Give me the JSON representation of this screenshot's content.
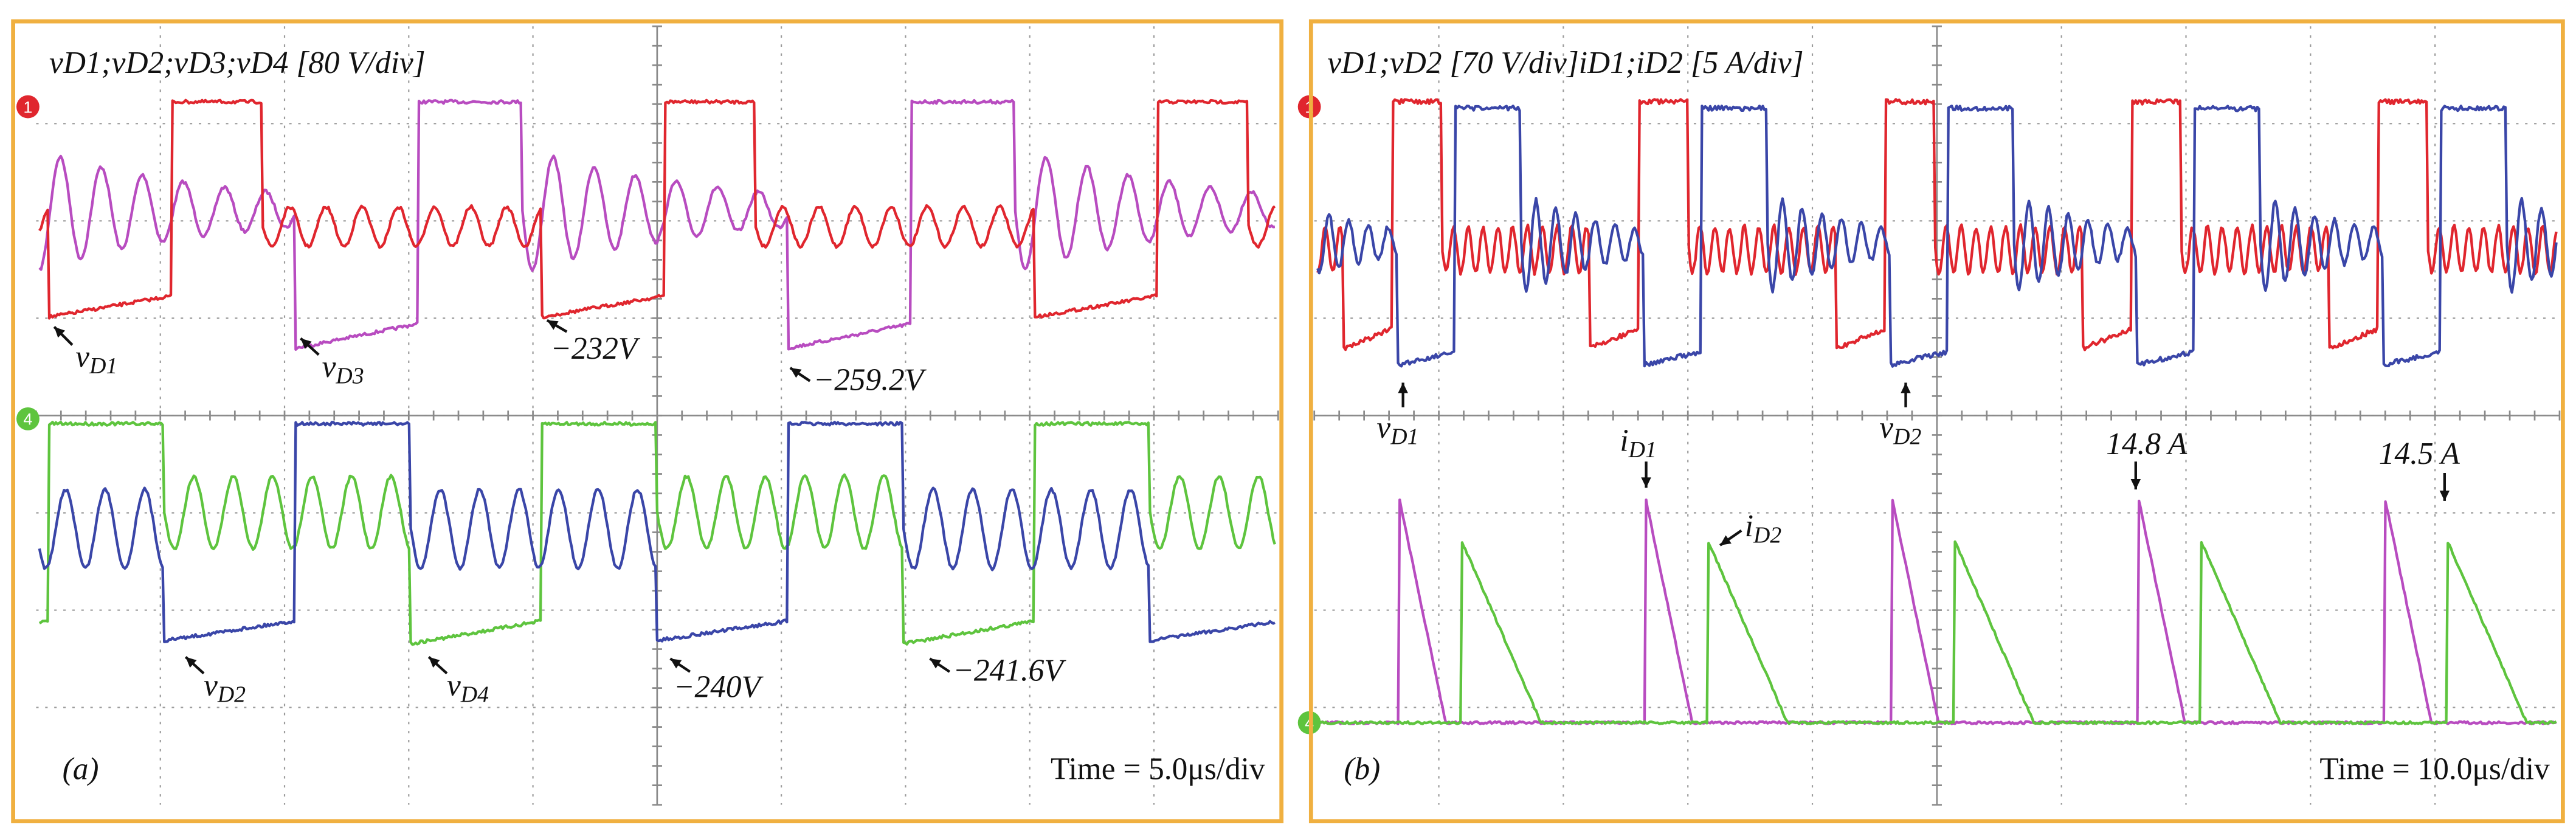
{
  "panel_a": {
    "title": "vD1;vD2;vD3;vD4 [80 V/div]",
    "label": "(a)",
    "time": "Time = 5.0μs/div",
    "markers": [
      "1",
      "4"
    ],
    "annotations": [
      {
        "base": "v",
        "sub": "D1"
      },
      {
        "base": "v",
        "sub": "D3"
      },
      {
        "base": "−232V",
        "sub": ""
      },
      {
        "base": "−259.2V",
        "sub": ""
      },
      {
        "base": "v",
        "sub": "D2"
      },
      {
        "base": "v",
        "sub": "D4"
      },
      {
        "base": "−240V",
        "sub": ""
      },
      {
        "base": "−241.6V",
        "sub": ""
      }
    ]
  },
  "panel_b": {
    "title": "vD1;vD2 [70 V/div]iD1;iD2 [5 A/div]",
    "label": "(b)",
    "time": "Time = 10.0μs/div",
    "markers": [
      "1",
      "4"
    ],
    "annotations": [
      {
        "base": "v",
        "sub": "D1"
      },
      {
        "base": "v",
        "sub": "D2"
      },
      {
        "base": "i",
        "sub": "D1"
      },
      {
        "base": "i",
        "sub": "D2"
      },
      {
        "base": "14.8 A",
        "sub": ""
      },
      {
        "base": "14.5 A",
        "sub": ""
      }
    ]
  }
}
